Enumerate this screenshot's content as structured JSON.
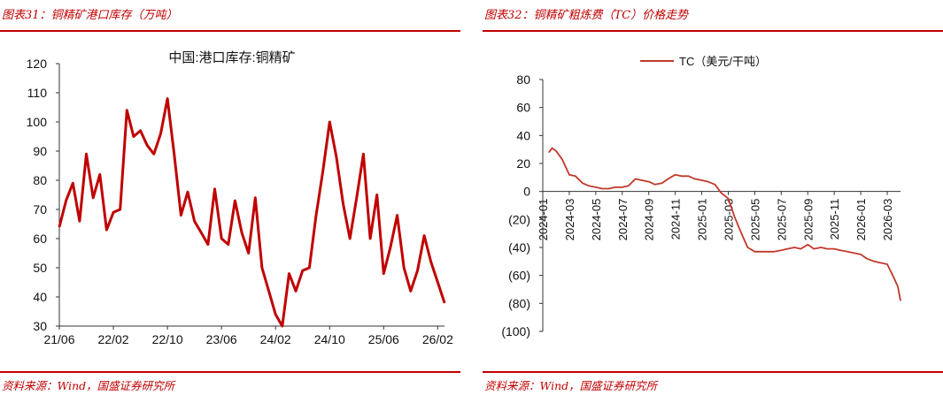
{
  "left_panel": {
    "title": "图表31：铜精矿港口库存（万吨）",
    "source": "资料来源：Wind，国盛证券研究所"
  },
  "right_panel": {
    "title": "图表32：铜精矿粗炼费（TC）价格走势",
    "source": "资料来源：Wind，国盛证券研究所"
  },
  "colors": {
    "accent": "#c00000",
    "series1": "#c00000",
    "series2": "#c0392b"
  },
  "chart_data": [
    {
      "type": "line",
      "title": "中国:港口库存:铜精矿",
      "xlabel": "",
      "ylabel": "",
      "xlim": [
        "2021-06",
        "2026-03"
      ],
      "ylim": [
        30,
        120
      ],
      "yticks": [
        30,
        40,
        50,
        60,
        70,
        80,
        90,
        100,
        110,
        120
      ],
      "xticks": [
        "21/06",
        "22/02",
        "22/10",
        "23/06",
        "24/02",
        "24/10",
        "25/06",
        "26/02"
      ],
      "grid": false,
      "legend": "none",
      "series": [
        {
          "x": [
            "2021-06",
            "2021-07",
            "2021-08",
            "2021-09",
            "2021-10",
            "2021-11",
            "2021-12",
            "2022-01",
            "2022-02",
            "2022-03",
            "2022-04",
            "2022-05",
            "2022-06",
            "2022-07",
            "2022-08",
            "2022-09",
            "2022-10",
            "2022-11",
            "2022-12",
            "2023-01",
            "2023-02",
            "2023-03",
            "2023-04",
            "2023-05",
            "2023-06",
            "2023-07",
            "2023-08",
            "2023-09",
            "2023-10",
            "2023-11",
            "2023-12",
            "2024-01",
            "2024-02",
            "2024-03",
            "2024-04",
            "2024-05",
            "2024-06",
            "2024-07",
            "2024-08",
            "2024-09",
            "2024-10",
            "2024-11",
            "2024-12",
            "2025-01",
            "2025-02",
            "2025-03",
            "2025-04",
            "2025-05",
            "2025-06",
            "2025-07",
            "2025-08",
            "2025-09",
            "2025-10",
            "2025-11",
            "2025-12",
            "2026-01",
            "2026-02",
            "2026-03"
          ],
          "values": [
            64,
            73,
            79,
            66,
            89,
            74,
            82,
            63,
            69,
            70,
            104,
            95,
            97,
            92,
            89,
            96,
            108,
            89,
            68,
            76,
            66,
            62,
            58,
            77,
            60,
            58,
            73,
            62,
            55,
            74,
            50,
            42,
            34,
            30,
            48,
            42,
            49,
            50,
            68,
            83,
            100,
            88,
            72,
            60,
            74,
            89,
            60,
            75,
            48,
            57,
            68,
            50,
            42,
            49,
            61,
            52,
            45,
            38
          ]
        }
      ]
    },
    {
      "type": "line",
      "title": "",
      "xlabel": "",
      "ylabel": "",
      "xlim": [
        "2024-01",
        "2026-04"
      ],
      "ylim": [
        -100,
        80
      ],
      "yticks": [
        -100,
        -80,
        -60,
        -40,
        -20,
        0,
        20,
        40,
        60,
        80
      ],
      "ytick_labels": [
        "(100)",
        "(80)",
        "(60)",
        "(40)",
        "(20)",
        "0",
        "20",
        "40",
        "60",
        "80"
      ],
      "xticks": [
        "2024-01",
        "2024-03",
        "2024-05",
        "2024-07",
        "2024-09",
        "2024-11",
        "2025-01",
        "2025-03",
        "2025-05",
        "2025-07",
        "2025-09",
        "2025-11",
        "2026-01",
        "2026-03"
      ],
      "grid": false,
      "legend": "top-center",
      "series": [
        {
          "name": "TC（美元/干吨）",
          "x": [
            "2024-01-15",
            "2024-01-22",
            "2024-02-01",
            "2024-02-15",
            "2024-03-01",
            "2024-03-15",
            "2024-04-01",
            "2024-04-15",
            "2024-05-01",
            "2024-05-15",
            "2024-06-01",
            "2024-06-15",
            "2024-07-01",
            "2024-07-15",
            "2024-08-01",
            "2024-08-15",
            "2024-09-01",
            "2024-09-15",
            "2024-10-01",
            "2024-10-15",
            "2024-11-01",
            "2024-11-15",
            "2024-12-01",
            "2024-12-15",
            "2025-01-01",
            "2025-01-15",
            "2025-02-01",
            "2025-02-15",
            "2025-03-01",
            "2025-03-15",
            "2025-04-01",
            "2025-04-15",
            "2025-05-01",
            "2025-05-15",
            "2025-06-01",
            "2025-06-15",
            "2025-07-01",
            "2025-07-15",
            "2025-08-01",
            "2025-08-15",
            "2025-09-01",
            "2025-09-15",
            "2025-10-01",
            "2025-10-15",
            "2025-11-01",
            "2025-11-15",
            "2025-12-01",
            "2025-12-15",
            "2026-01-01",
            "2026-01-15",
            "2026-02-01",
            "2026-02-15",
            "2026-03-01",
            "2026-03-15",
            "2026-03-25",
            "2026-04-01"
          ],
          "values": [
            28,
            31,
            29,
            23,
            12,
            11,
            6,
            4,
            3,
            2,
            2,
            3,
            3,
            4,
            9,
            8,
            7,
            5,
            6,
            9,
            12,
            11,
            11,
            9,
            8,
            7,
            5,
            -1,
            -5,
            -18,
            -30,
            -40,
            -43,
            -43,
            -43,
            -43,
            -42,
            -41,
            -40,
            -41,
            -38,
            -41,
            -40,
            -41,
            -41,
            -42,
            -43,
            -44,
            -45,
            -48,
            -50,
            -51,
            -52,
            -61,
            -68,
            -78
          ]
        }
      ]
    }
  ]
}
